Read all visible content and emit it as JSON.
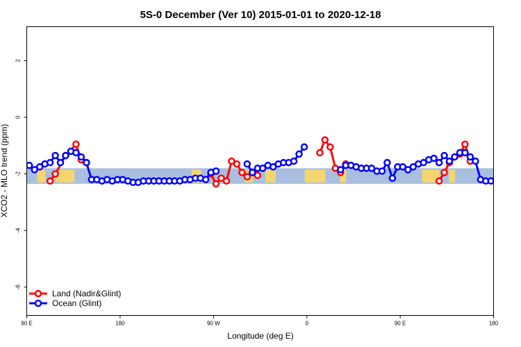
{
  "chart_data": {
    "type": "line",
    "title": "5S-0 December (Ver 10)   2015-01-01 to 2020-12-18",
    "xlabel": "Longitude (deg E)",
    "ylabel": "XCO2 - MLO trend (ppm)",
    "xlim": [
      90,
      540
    ],
    "ylim": [
      -7,
      3.2
    ],
    "x_ticks": [
      {
        "value": 90,
        "label": "90 E"
      },
      {
        "value": 180,
        "label": "180"
      },
      {
        "value": 270,
        "label": "90 W"
      },
      {
        "value": 360,
        "label": "0"
      },
      {
        "value": 450,
        "label": "90 E"
      },
      {
        "value": 540,
        "label": "180"
      }
    ],
    "y_ticks": [
      {
        "value": 2,
        "label": "2"
      },
      {
        "value": 0,
        "label": "0"
      },
      {
        "value": -2,
        "label": "-2"
      },
      {
        "value": -4,
        "label": "-4"
      },
      {
        "value": -6,
        "label": "-6"
      }
    ],
    "reference_band": {
      "ymin": -2.35,
      "ymax": -1.8,
      "color": "#a8bfe0"
    },
    "land_strips": [
      [
        100,
        108
      ],
      [
        118,
        136
      ],
      [
        249,
        258
      ],
      [
        300,
        308
      ],
      [
        320,
        330
      ],
      [
        358,
        378
      ],
      [
        392,
        398
      ],
      [
        471,
        488
      ],
      [
        497,
        503
      ]
    ],
    "land_strip_color": "#f5d56e",
    "legend": {
      "position": "bottom-left",
      "entries": [
        {
          "label": "Land (Nadir&Glint)",
          "color": "#ff0000"
        },
        {
          "label": "Ocean (Glint)",
          "color": "#0000ff"
        }
      ]
    },
    "series": [
      {
        "name": "Land (Nadir&Glint)",
        "color": "#ff0000",
        "segments": [
          [
            [
              112.5,
              -2.25
            ],
            [
              117.5,
              -2.0
            ],
            [
              127.5,
              -1.35
            ],
            [
              137.5,
              -0.95
            ],
            [
              142.5,
              -1.5
            ],
            [
              147.5,
              -1.6
            ]
          ],
          [
            [
              267.5,
              -2.0
            ],
            [
              272.5,
              -2.35
            ],
            [
              277.5,
              -2.15
            ],
            [
              282.5,
              -2.25
            ],
            [
              287.5,
              -1.55
            ],
            [
              292.5,
              -1.65
            ],
            [
              297.5,
              -1.95
            ],
            [
              302.5,
              -2.1
            ],
            [
              307.5,
              -1.95
            ],
            [
              312.5,
              -2.05
            ]
          ],
          [
            [
              372.5,
              -1.25
            ],
            [
              377.5,
              -0.8
            ],
            [
              382.5,
              -1.05
            ],
            [
              387.5,
              -1.8
            ],
            [
              392.5,
              -1.95
            ],
            [
              397.5,
              -1.65
            ]
          ],
          [
            [
              487.5,
              -2.25
            ],
            [
              492.5,
              -1.95
            ],
            [
              497.5,
              -1.6
            ],
            [
              507.5,
              -1.3
            ],
            [
              512.5,
              -0.95
            ],
            [
              517.5,
              -1.55
            ]
          ]
        ]
      },
      {
        "name": "Ocean (Glint)",
        "color": "#0000ff",
        "segments": [
          [
            [
              92.5,
              -1.7
            ],
            [
              97.5,
              -1.85
            ],
            [
              102.5,
              -1.75
            ],
            [
              107.5,
              -1.65
            ],
            [
              112.5,
              -1.6
            ],
            [
              117.5,
              -1.35
            ],
            [
              122.5,
              -1.6
            ],
            [
              127.5,
              -1.35
            ],
            [
              132.5,
              -1.2
            ],
            [
              137.5,
              -1.25
            ],
            [
              142.5,
              -1.4
            ],
            [
              147.5,
              -1.6
            ],
            [
              152.5,
              -2.2
            ],
            [
              157.5,
              -2.2
            ],
            [
              162.5,
              -2.25
            ],
            [
              167.5,
              -2.2
            ],
            [
              172.5,
              -2.25
            ],
            [
              177.5,
              -2.2
            ],
            [
              182.5,
              -2.2
            ],
            [
              187.5,
              -2.25
            ],
            [
              192.5,
              -2.3
            ],
            [
              197.5,
              -2.3
            ],
            [
              202.5,
              -2.25
            ],
            [
              207.5,
              -2.25
            ],
            [
              212.5,
              -2.25
            ],
            [
              217.5,
              -2.25
            ],
            [
              222.5,
              -2.25
            ],
            [
              227.5,
              -2.25
            ],
            [
              232.5,
              -2.25
            ],
            [
              237.5,
              -2.25
            ],
            [
              242.5,
              -2.2
            ],
            [
              247.5,
              -2.2
            ],
            [
              252.5,
              -2.15
            ],
            [
              257.5,
              -2.15
            ],
            [
              262.5,
              -2.2
            ],
            [
              267.5,
              -1.95
            ],
            [
              272.5,
              -1.9
            ]
          ],
          [
            [
              302.5,
              -1.65
            ],
            [
              307.5,
              -1.95
            ],
            [
              312.5,
              -1.8
            ],
            [
              317.5,
              -1.8
            ],
            [
              322.5,
              -1.7
            ],
            [
              327.5,
              -1.75
            ],
            [
              332.5,
              -1.65
            ],
            [
              337.5,
              -1.6
            ],
            [
              342.5,
              -1.6
            ],
            [
              347.5,
              -1.55
            ],
            [
              352.5,
              -1.3
            ],
            [
              357.5,
              -1.05
            ]
          ],
          [
            [
              392.5,
              -1.85
            ],
            [
              397.5,
              -1.7
            ],
            [
              402.5,
              -1.7
            ],
            [
              407.5,
              -1.75
            ],
            [
              412.5,
              -1.8
            ],
            [
              417.5,
              -1.8
            ],
            [
              422.5,
              -1.8
            ],
            [
              427.5,
              -1.9
            ],
            [
              432.5,
              -1.9
            ],
            [
              437.5,
              -1.6
            ],
            [
              442.5,
              -2.15
            ],
            [
              447.5,
              -1.75
            ],
            [
              452.5,
              -1.75
            ],
            [
              457.5,
              -1.85
            ],
            [
              462.5,
              -1.75
            ],
            [
              467.5,
              -1.65
            ],
            [
              472.5,
              -1.6
            ],
            [
              477.5,
              -1.5
            ],
            [
              482.5,
              -1.45
            ],
            [
              487.5,
              -1.6
            ],
            [
              492.5,
              -1.35
            ],
            [
              497.5,
              -1.55
            ],
            [
              502.5,
              -1.4
            ],
            [
              507.5,
              -1.25
            ],
            [
              512.5,
              -1.25
            ],
            [
              517.5,
              -1.4
            ],
            [
              522.5,
              -1.55
            ],
            [
              527.5,
              -2.2
            ],
            [
              532.5,
              -2.25
            ],
            [
              537.5,
              -2.25
            ],
            [
              542.5,
              -2.25
            ]
          ]
        ]
      }
    ]
  }
}
